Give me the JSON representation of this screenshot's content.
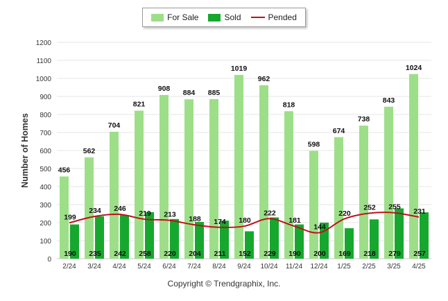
{
  "legend": {
    "for_sale": "For Sale",
    "sold": "Sold",
    "pended": "Pended"
  },
  "copyright": "Copyright © Trendgraphix, Inc.",
  "colors": {
    "for_sale": "#9ddf88",
    "sold": "#16a82e",
    "pended": "#c0101a"
  },
  "chart_data": {
    "type": "bar",
    "title": "",
    "xlabel": "",
    "ylabel": "Number of Homes",
    "ylim": [
      0,
      1200
    ],
    "yticks": [
      0,
      100,
      200,
      300,
      400,
      500,
      600,
      700,
      800,
      900,
      1000,
      1100,
      1200
    ],
    "grid": true,
    "legend_placement": "top-center",
    "categories": [
      "2/24",
      "3/24",
      "4/24",
      "5/24",
      "6/24",
      "7/24",
      "8/24",
      "9/24",
      "10/24",
      "11/24",
      "12/24",
      "1/25",
      "2/25",
      "3/25",
      "4/25"
    ],
    "series": [
      {
        "name": "For Sale",
        "type": "bar",
        "values": [
          456,
          562,
          704,
          821,
          908,
          884,
          885,
          1019,
          962,
          818,
          598,
          674,
          738,
          843,
          1024
        ]
      },
      {
        "name": "Sold",
        "type": "bar",
        "values": [
          190,
          235,
          242,
          258,
          220,
          204,
          211,
          152,
          229,
          190,
          200,
          169,
          218,
          279,
          257
        ]
      },
      {
        "name": "Pended",
        "type": "line",
        "values": [
          199,
          234,
          246,
          219,
          213,
          188,
          174,
          180,
          222,
          181,
          144,
          220,
          252,
          255,
          231
        ]
      }
    ]
  }
}
